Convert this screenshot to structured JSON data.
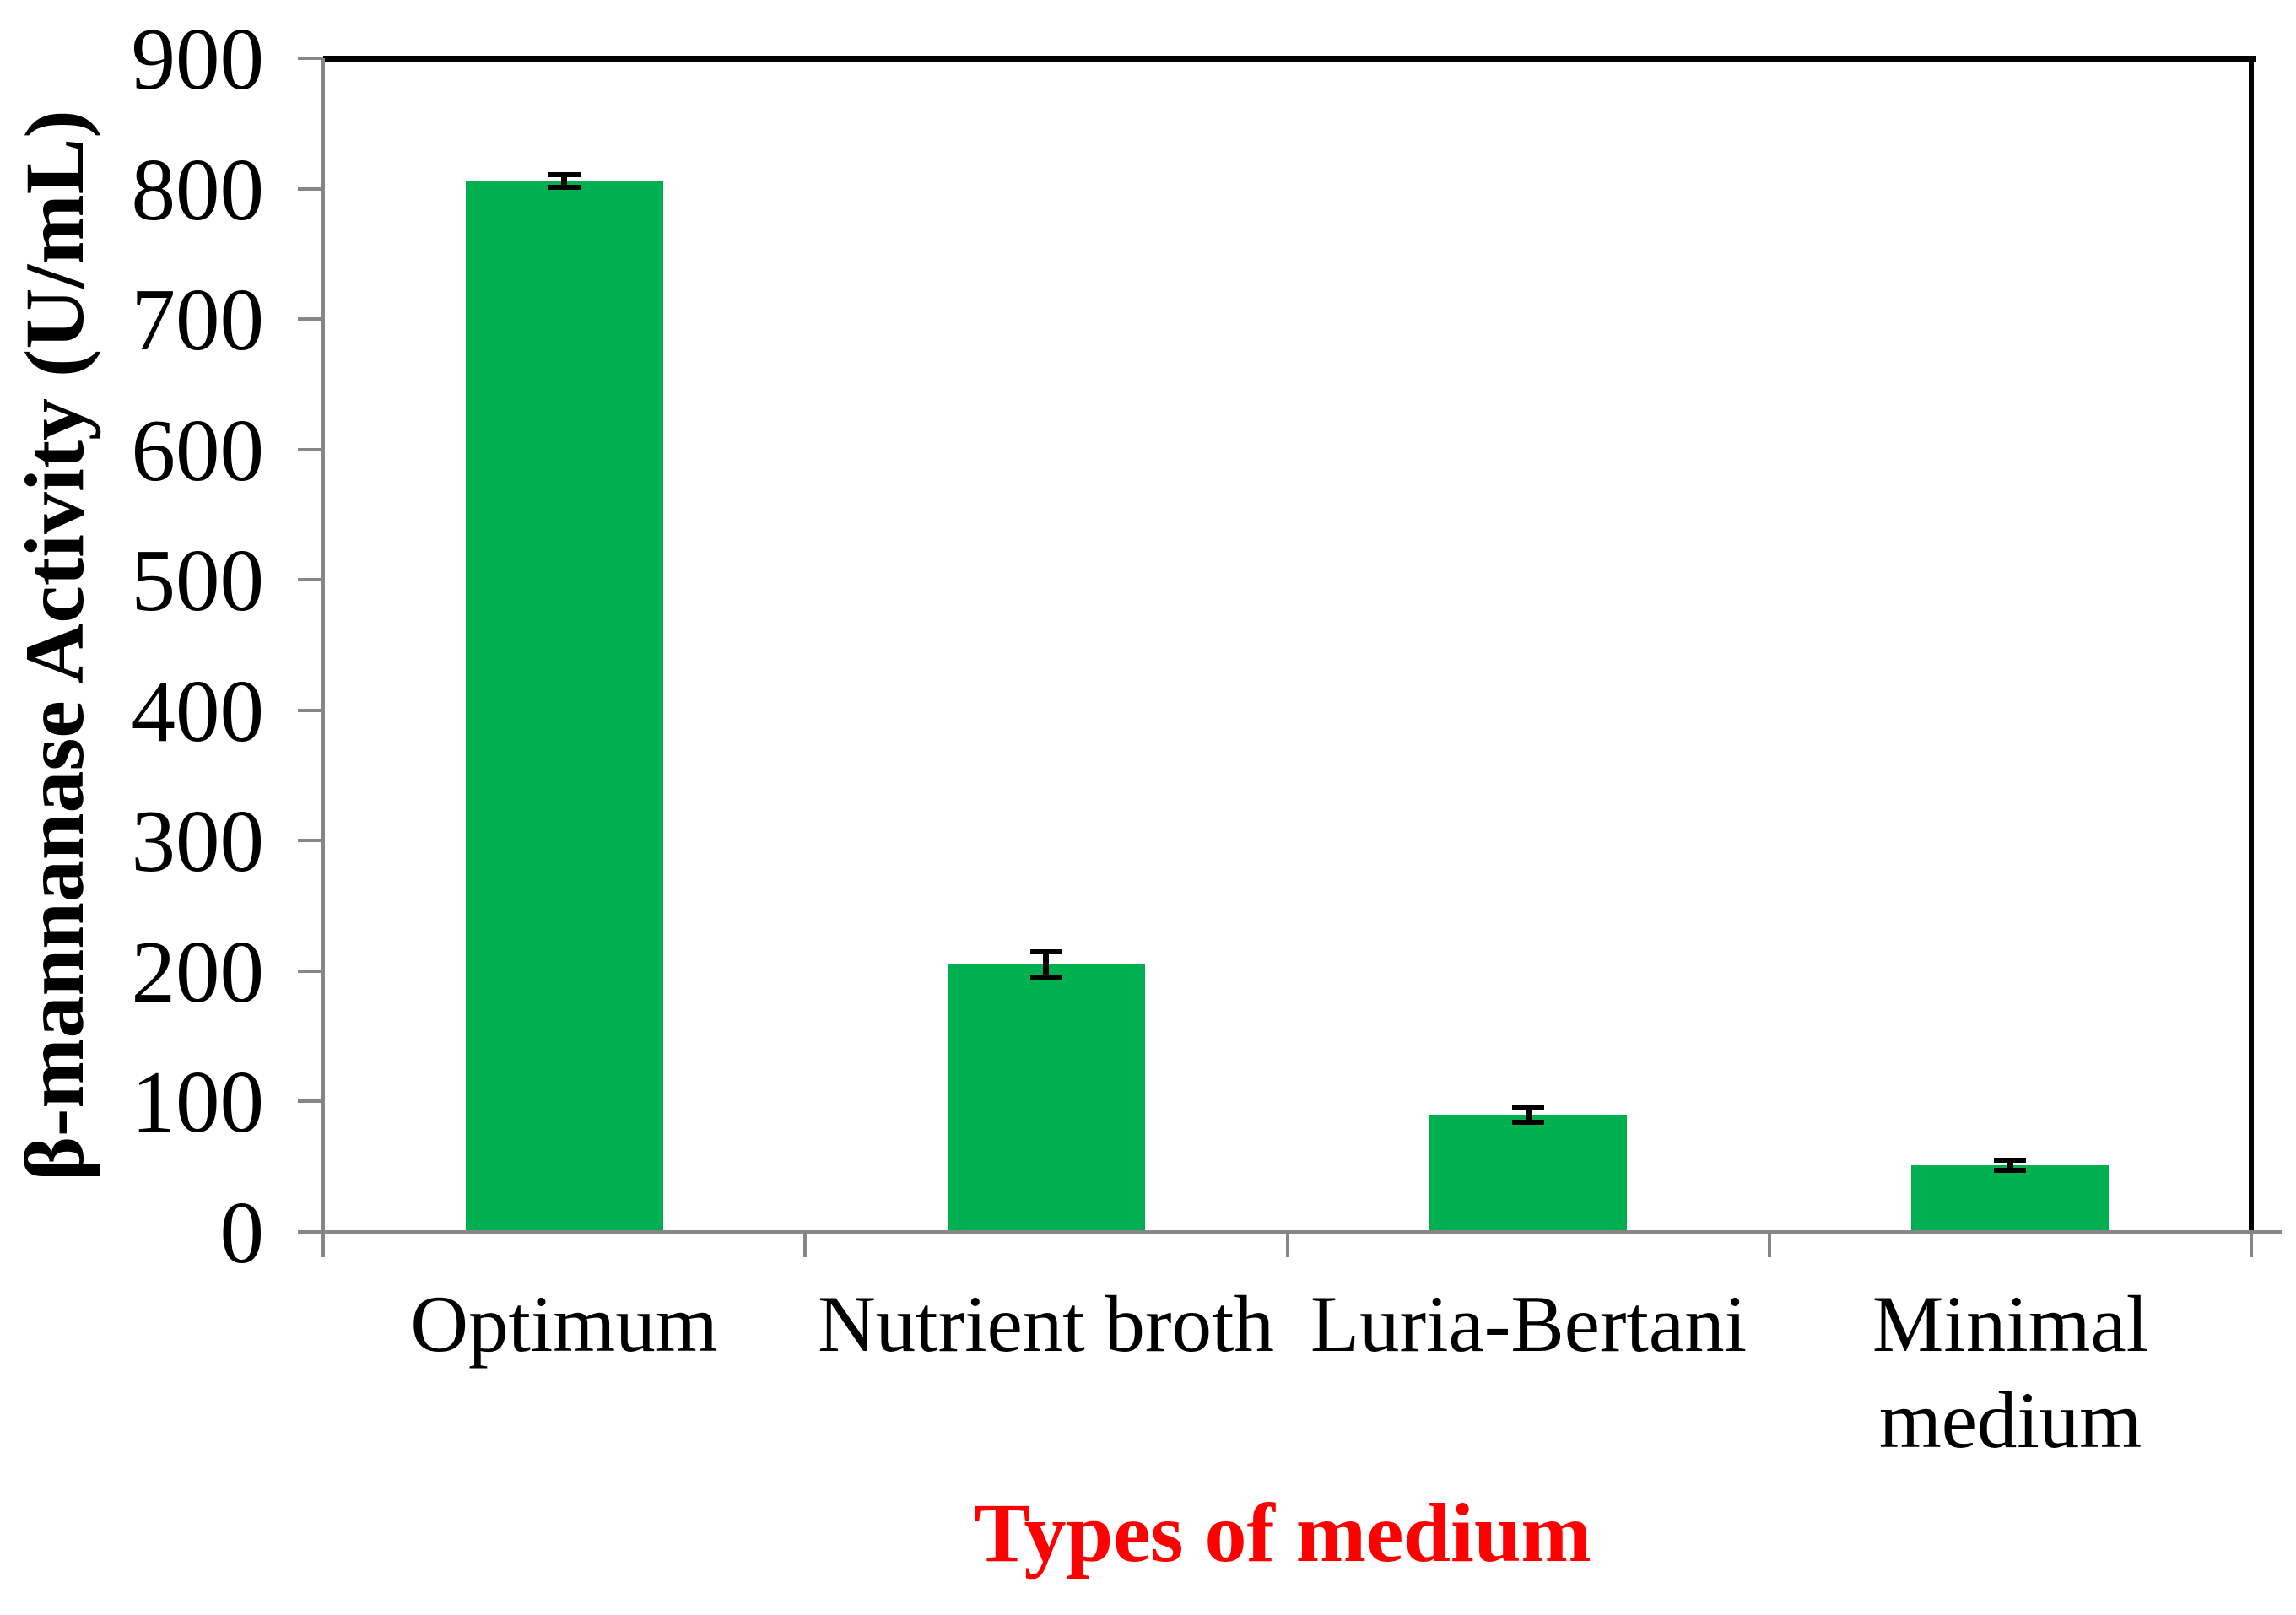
{
  "chart_data": {
    "type": "bar",
    "title": "",
    "xlabel": "Types of medium",
    "ylabel": "β-mannanase Activity (U/mL)",
    "categories": [
      "Optimum",
      "Nutrient broth",
      "Luria-Bertani",
      "Minimal medium"
    ],
    "values": [
      806,
      205,
      90,
      51
    ],
    "error_bars": [
      5,
      10,
      6,
      4
    ],
    "ylim": [
      0,
      900
    ],
    "yticks": [
      0,
      100,
      200,
      300,
      400,
      500,
      600,
      700,
      800,
      900
    ],
    "grid": false,
    "legend": "none",
    "colors": {
      "bar": "#00B050",
      "axis": "#868686",
      "error_bar": "#000000",
      "plot_border": "#000000",
      "xlabel": "#FF0000",
      "ylabel": "#000000",
      "tick_label": "#000000",
      "background": "#FFFFFF"
    }
  }
}
